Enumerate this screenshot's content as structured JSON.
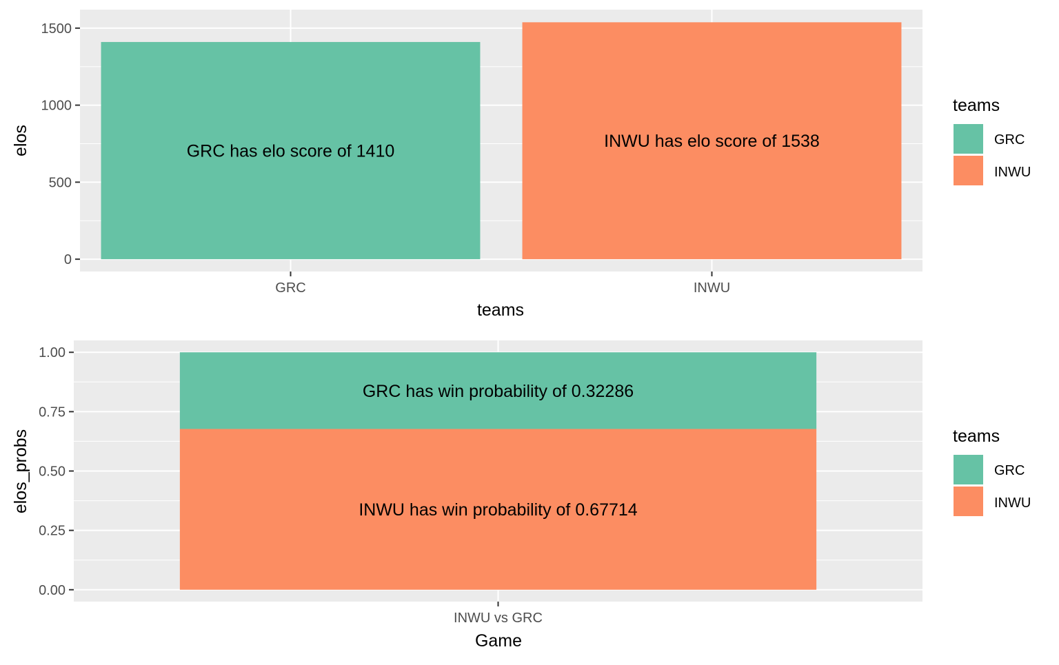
{
  "chart_data": [
    {
      "type": "bar",
      "title": "",
      "xlabel": "teams",
      "ylabel": "elos",
      "categories": [
        "GRC",
        "INWU"
      ],
      "values": [
        1410,
        1538
      ],
      "bar_labels": [
        "GRC has elo score of 1410",
        "INWU has elo score of 1538"
      ],
      "ylim": [
        -80,
        1620
      ],
      "yticks": [
        0,
        500,
        1000,
        1500
      ],
      "ytick_labels": [
        "0",
        "500",
        "1000",
        "1500"
      ],
      "grid": true,
      "legend": {
        "title": "teams",
        "position": "right",
        "entries": [
          "GRC",
          "INWU"
        ]
      },
      "colors": [
        "#66c2a5",
        "#fc8d62"
      ]
    },
    {
      "type": "bar",
      "stacked": true,
      "title": "",
      "xlabel": "Game",
      "ylabel": "elos_probs",
      "categories": [
        "INWU vs GRC"
      ],
      "series": [
        {
          "name": "GRC",
          "values": [
            0.32286
          ],
          "label": "GRC has win probability of 0.32286"
        },
        {
          "name": "INWU",
          "values": [
            0.67714
          ],
          "label": "INWU has win probability of 0.67714"
        }
      ],
      "ylim": [
        -0.05,
        1.05
      ],
      "yticks": [
        0,
        0.25,
        0.5,
        0.75,
        1.0
      ],
      "ytick_labels": [
        "0.00",
        "0.25",
        "0.50",
        "0.75",
        "1.00"
      ],
      "grid": true,
      "legend": {
        "title": "teams",
        "position": "right",
        "entries": [
          "GRC",
          "INWU"
        ]
      },
      "colors": [
        "#66c2a5",
        "#fc8d62"
      ]
    }
  ]
}
